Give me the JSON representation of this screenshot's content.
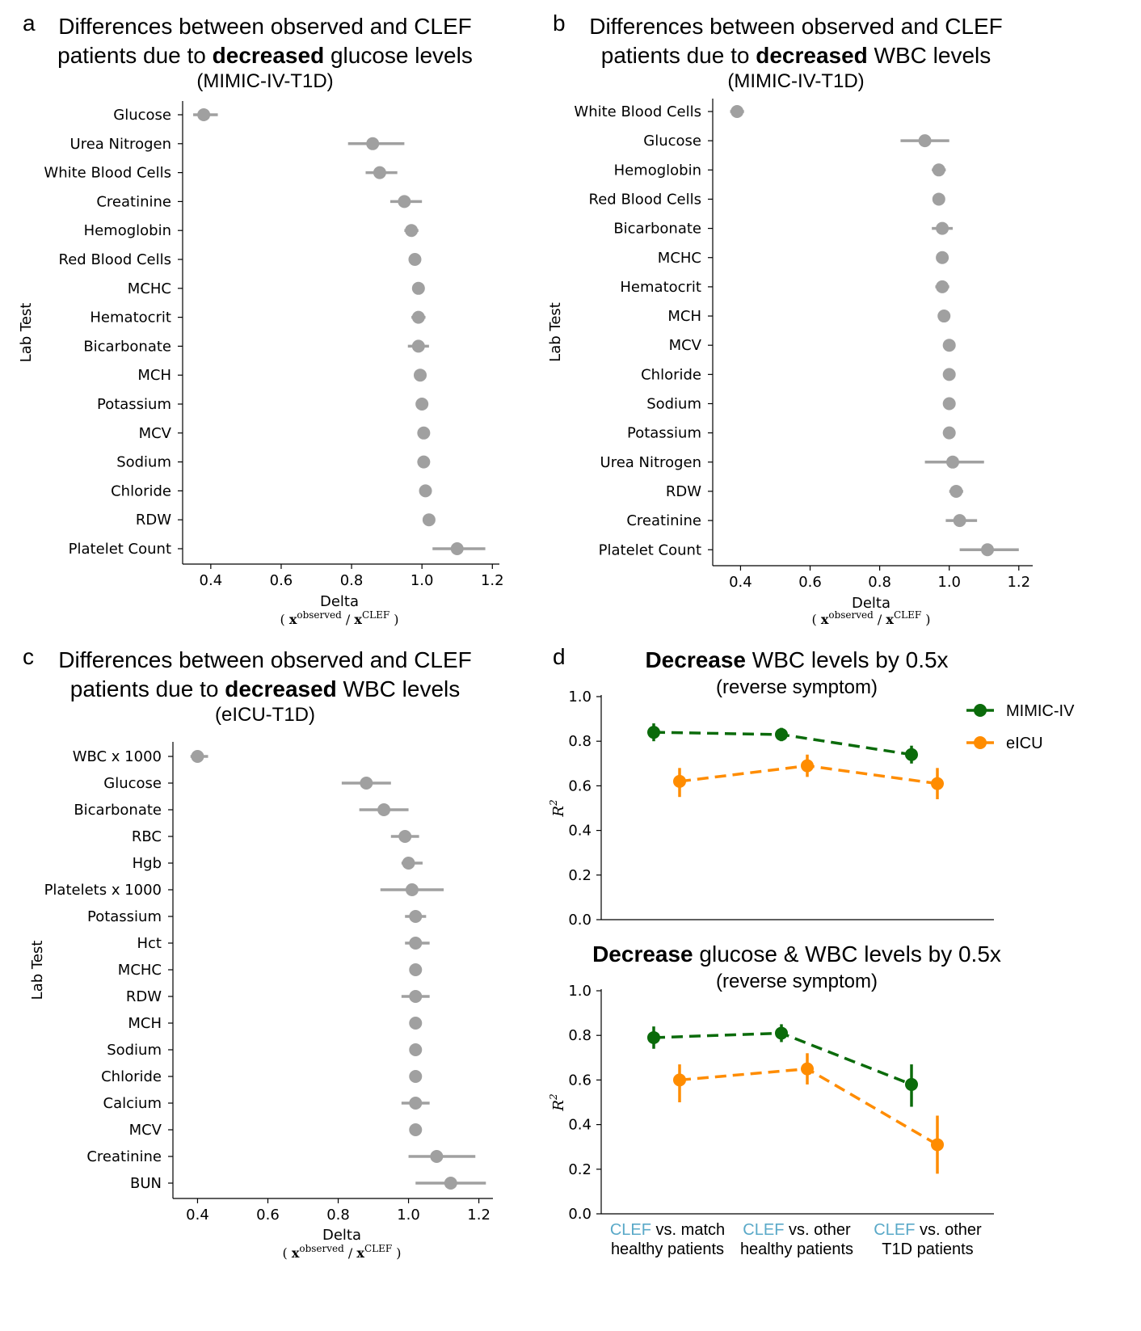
{
  "colors": {
    "grey": "#a0a0a0",
    "green": "#0b6b0b",
    "orange": "#ff8c00",
    "clef": "#5aa9c8"
  },
  "chart_data": [
    {
      "panel": "a",
      "type": "scatter",
      "title_pre": "Differences between observed and CLEF",
      "title_mid_pre": "patients due to ",
      "title_bold": "decreased",
      "title_mid_post": " glucose levels",
      "subtitle": "(MIMIC-IV-T1D)",
      "ylabel": "Lab Test",
      "xlabel": "Delta",
      "xlabel_formula": {
        "open": "(",
        "num": "x",
        "num_sup": "observed",
        "sep": "/",
        "den": "x",
        "den_sup": "CLEF",
        "close": ")"
      },
      "xlim": [
        0.32,
        1.22
      ],
      "xticks": [
        "0.4",
        "0.6",
        "0.8",
        "1.0",
        "1.2"
      ],
      "xtick_values": [
        0.4,
        0.6,
        0.8,
        1.0,
        1.2
      ],
      "categories": [
        "Glucose",
        "Urea Nitrogen",
        "White Blood Cells",
        "Creatinine",
        "Hemoglobin",
        "Red Blood Cells",
        "MCHC",
        "Hematocrit",
        "Bicarbonate",
        "MCH",
        "Potassium",
        "MCV",
        "Sodium",
        "Chloride",
        "RDW",
        "Platelet Count"
      ],
      "values": [
        0.38,
        0.86,
        0.88,
        0.95,
        0.97,
        0.98,
        0.99,
        0.99,
        0.99,
        0.995,
        1.0,
        1.005,
        1.005,
        1.01,
        1.02,
        1.1
      ],
      "err_low": [
        0.35,
        0.79,
        0.84,
        0.91,
        0.95,
        0.97,
        0.98,
        0.97,
        0.96,
        0.99,
        0.995,
        1.0,
        1.0,
        1.005,
        1.01,
        1.03
      ],
      "err_high": [
        0.42,
        0.95,
        0.93,
        1.0,
        0.99,
        0.99,
        1.0,
        1.01,
        1.02,
        1.0,
        1.005,
        1.01,
        1.01,
        1.015,
        1.03,
        1.18
      ]
    },
    {
      "panel": "b",
      "type": "scatter",
      "title_pre": "Differences between observed and CLEF",
      "title_mid_pre": "patients due to ",
      "title_bold": "decreased",
      "title_mid_post": " WBC levels",
      "subtitle": "(MIMIC-IV-T1D)",
      "ylabel": "Lab Test",
      "xlabel": "Delta",
      "xlabel_formula": {
        "open": "(",
        "num": "x",
        "num_sup": "observed",
        "sep": "/",
        "den": "x",
        "den_sup": "CLEF",
        "close": ")"
      },
      "xlim": [
        0.32,
        1.24
      ],
      "xticks": [
        "0.4",
        "0.6",
        "0.8",
        "1.0",
        "1.2"
      ],
      "xtick_values": [
        0.4,
        0.6,
        0.8,
        1.0,
        1.2
      ],
      "categories": [
        "White Blood Cells",
        "Glucose",
        "Hemoglobin",
        "Red Blood Cells",
        "Bicarbonate",
        "MCHC",
        "Hematocrit",
        "MCH",
        "MCV",
        "Chloride",
        "Sodium",
        "Potassium",
        "Urea Nitrogen",
        "RDW",
        "Creatinine",
        "Platelet Count"
      ],
      "values": [
        0.39,
        0.93,
        0.97,
        0.97,
        0.98,
        0.98,
        0.98,
        0.985,
        1.0,
        1.0,
        1.0,
        1.0,
        1.01,
        1.02,
        1.03,
        1.11
      ],
      "err_low": [
        0.37,
        0.86,
        0.95,
        0.96,
        0.95,
        0.97,
        0.96,
        0.975,
        0.995,
        0.995,
        0.995,
        0.995,
        0.93,
        1.0,
        0.99,
        1.03
      ],
      "err_high": [
        0.41,
        1.0,
        0.99,
        0.98,
        1.01,
        0.99,
        1.0,
        0.995,
        1.005,
        1.005,
        1.005,
        1.005,
        1.1,
        1.04,
        1.08,
        1.2
      ]
    },
    {
      "panel": "c",
      "type": "scatter",
      "title_pre": "Differences between observed and CLEF",
      "title_mid_pre": "patients due to ",
      "title_bold": "decreased",
      "title_mid_post": " WBC levels",
      "subtitle": "(eICU-T1D)",
      "ylabel": "Lab Test",
      "xlabel": "Delta",
      "xlabel_formula": {
        "open": "(",
        "num": "x",
        "num_sup": "observed",
        "sep": "/",
        "den": "x",
        "den_sup": "CLEF",
        "close": ")"
      },
      "xlim": [
        0.33,
        1.24
      ],
      "xticks": [
        "0.4",
        "0.6",
        "0.8",
        "1.0",
        "1.2"
      ],
      "xtick_values": [
        0.4,
        0.6,
        0.8,
        1.0,
        1.2
      ],
      "categories": [
        "WBC x 1000",
        "Glucose",
        "Bicarbonate",
        "RBC",
        "Hgb",
        "Platelets x 1000",
        "Potassium",
        "Hct",
        "MCHC",
        "RDW",
        "MCH",
        "Sodium",
        "Chloride",
        "Calcium",
        "MCV",
        "Creatinine",
        "BUN"
      ],
      "values": [
        0.4,
        0.88,
        0.93,
        0.99,
        1.0,
        1.01,
        1.02,
        1.02,
        1.02,
        1.02,
        1.02,
        1.02,
        1.02,
        1.02,
        1.02,
        1.08,
        1.12
      ],
      "err_low": [
        0.38,
        0.81,
        0.86,
        0.95,
        0.98,
        0.92,
        0.99,
        0.99,
        1.01,
        0.98,
        1.01,
        1.01,
        1.01,
        0.98,
        1.01,
        1.0,
        1.02
      ],
      "err_high": [
        0.43,
        0.95,
        1.0,
        1.03,
        1.04,
        1.1,
        1.05,
        1.06,
        1.03,
        1.06,
        1.03,
        1.03,
        1.03,
        1.06,
        1.03,
        1.19,
        1.22
      ]
    },
    {
      "panel": "d",
      "type": "line",
      "title_bold": "Decrease",
      "title_post": " WBC levels by 0.5x",
      "subtitle": "(reverse symptom)",
      "ylabel": "R",
      "ylabel_sup": "2",
      "ylim": [
        0.0,
        1.0
      ],
      "yticks": [
        "0.0",
        "0.2",
        "0.4",
        "0.6",
        "0.8",
        "1.0"
      ],
      "ytick_values": [
        0.0,
        0.2,
        0.4,
        0.6,
        0.8,
        1.0
      ],
      "series": [
        {
          "name": "MIMIC-IV",
          "values": [
            0.84,
            0.83,
            0.74
          ],
          "err_low": [
            0.8,
            0.8,
            0.7
          ],
          "err_high": [
            0.88,
            0.86,
            0.78
          ]
        },
        {
          "name": "eICU",
          "values": [
            0.62,
            0.69,
            0.61
          ],
          "err_low": [
            0.55,
            0.64,
            0.54
          ],
          "err_high": [
            0.68,
            0.74,
            0.68
          ]
        }
      ]
    },
    {
      "panel": "d",
      "type": "line",
      "title_bold": "Decrease",
      "title_post": " glucose & WBC levels by 0.5x",
      "subtitle": "(reverse symptom)",
      "ylabel": "R",
      "ylabel_sup": "2",
      "ylim": [
        0.0,
        1.0
      ],
      "yticks": [
        "0.0",
        "0.2",
        "0.4",
        "0.6",
        "0.8",
        "1.0"
      ],
      "ytick_values": [
        0.0,
        0.2,
        0.4,
        0.6,
        0.8,
        1.0
      ],
      "categories": [
        {
          "clef": "CLEF",
          "line1": " vs. match",
          "line2": "healthy patients"
        },
        {
          "clef": "CLEF",
          "line1": " vs. other",
          "line2": "healthy patients"
        },
        {
          "clef": "CLEF",
          "line1": " vs. other",
          "line2": "T1D patients"
        }
      ],
      "series": [
        {
          "name": "MIMIC-IV",
          "values": [
            0.79,
            0.81,
            0.58
          ],
          "err_low": [
            0.74,
            0.77,
            0.48
          ],
          "err_high": [
            0.84,
            0.85,
            0.67
          ]
        },
        {
          "name": "eICU",
          "values": [
            0.6,
            0.65,
            0.31
          ],
          "err_low": [
            0.5,
            0.58,
            0.18
          ],
          "err_high": [
            0.67,
            0.72,
            0.44
          ]
        }
      ]
    }
  ],
  "legend": {
    "items": [
      "MIMIC-IV",
      "eICU"
    ]
  }
}
